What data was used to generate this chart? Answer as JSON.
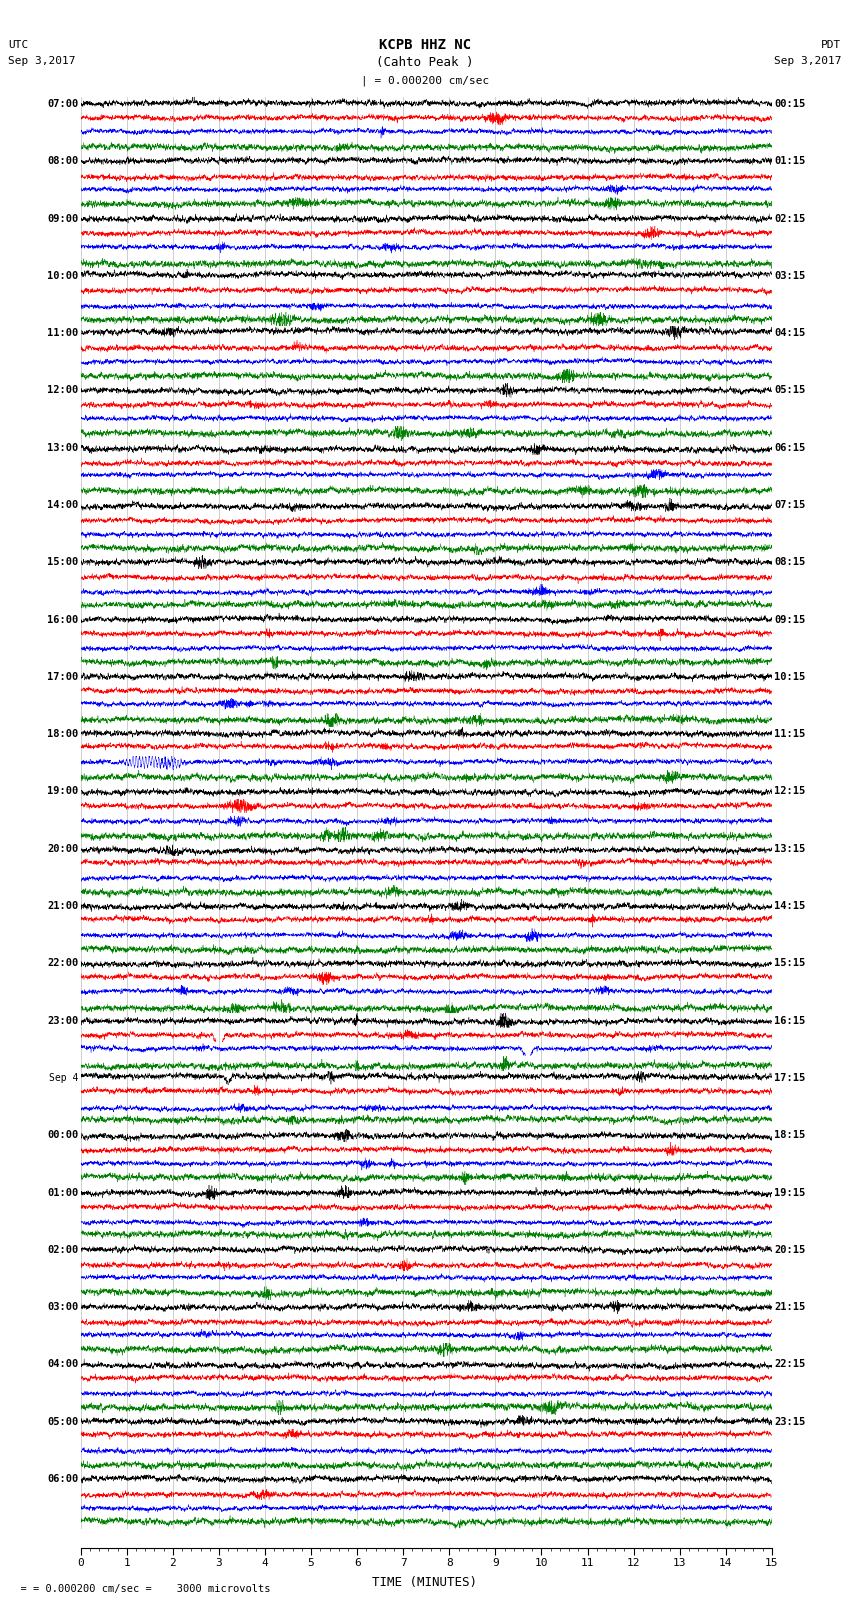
{
  "title_line1": "KCPB HHZ NC",
  "title_line2": "(Cahto Peak )",
  "scale_text": "| = 0.000200 cm/sec",
  "bottom_text": "= 0.000200 cm/sec =    3000 microvolts",
  "utc_label": "UTC",
  "utc_date": "Sep 3,2017",
  "pdt_label": "PDT",
  "pdt_date": "Sep 3,2017",
  "xlabel": "TIME (MINUTES)",
  "left_times": [
    "07:00",
    "08:00",
    "09:00",
    "10:00",
    "11:00",
    "12:00",
    "13:00",
    "14:00",
    "15:00",
    "16:00",
    "17:00",
    "18:00",
    "19:00",
    "20:00",
    "21:00",
    "22:00",
    "23:00",
    "Sep 4",
    "00:00",
    "01:00",
    "02:00",
    "03:00",
    "04:00",
    "05:00",
    "06:00"
  ],
  "right_times": [
    "00:15",
    "01:15",
    "02:15",
    "03:15",
    "04:15",
    "05:15",
    "06:15",
    "07:15",
    "08:15",
    "09:15",
    "10:15",
    "11:15",
    "12:15",
    "13:15",
    "14:15",
    "15:15",
    "16:15",
    "17:15",
    "18:15",
    "19:15",
    "20:15",
    "21:15",
    "22:15",
    "23:15",
    ""
  ],
  "colors": [
    "black",
    "red",
    "blue",
    "green"
  ],
  "bg_color": "#ffffff",
  "grid_color": "#bbbbbb",
  "n_rows": 25,
  "traces_per_row": 4,
  "xmin": 0,
  "xmax": 15,
  "xticks": [
    0,
    1,
    2,
    3,
    4,
    5,
    6,
    7,
    8,
    9,
    10,
    11,
    12,
    13,
    14,
    15
  ],
  "fig_width": 8.5,
  "fig_height": 16.13,
  "dpi": 100,
  "row_amplitudes": [
    1.2,
    1.5,
    0.8,
    0.7,
    0.8,
    0.9,
    0.8,
    1.0,
    0.9,
    0.9,
    1.2,
    1.8,
    0.9,
    1.0,
    0.9,
    0.9,
    1.0,
    0.9,
    1.5,
    2.5,
    2.5,
    3.5,
    4.5,
    5.0,
    4.0
  ],
  "color_amp_factors": [
    1.0,
    0.9,
    0.8,
    1.1
  ]
}
